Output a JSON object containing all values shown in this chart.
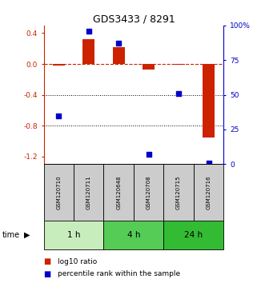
{
  "title": "GDS3433 / 8291",
  "samples": [
    "GSM120710",
    "GSM120711",
    "GSM120648",
    "GSM120708",
    "GSM120715",
    "GSM120716"
  ],
  "log10_ratio": [
    -0.02,
    0.32,
    0.22,
    -0.07,
    -0.01,
    -0.95
  ],
  "percentile_rank": [
    35,
    96,
    87,
    7,
    51,
    1
  ],
  "ylim_left": [
    -1.3,
    0.5
  ],
  "ylim_right": [
    0,
    100
  ],
  "yticks_left": [
    0.4,
    0.0,
    -0.4,
    -0.8,
    -1.2
  ],
  "yticks_right": [
    100,
    75,
    50,
    25,
    0
  ],
  "bar_color_red": "#cc2200",
  "dot_color_blue": "#0000cc",
  "bar_width": 0.4,
  "dot_size": 18,
  "zero_line_color": "#cc2200",
  "grid_color": "#000000",
  "sample_box_color": "#cccccc",
  "green_colors": [
    "#c8edbc",
    "#55cc55",
    "#33bb33"
  ],
  "time_labels": [
    "1 h",
    "4 h",
    "24 h"
  ],
  "legend_red_label": "log10 ratio",
  "legend_blue_label": "percentile rank within the sample"
}
